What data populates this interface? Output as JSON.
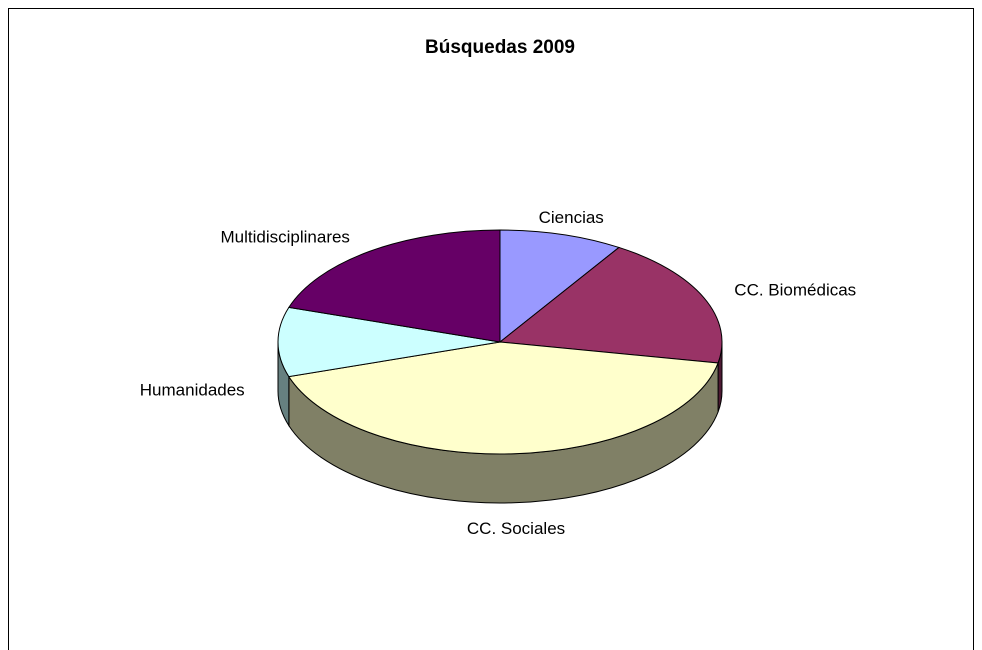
{
  "chart_data": {
    "type": "pie3d",
    "title": "Búsquedas 2009",
    "categories": [
      "Ciencias",
      "CC. Biomédicas",
      "CC. Sociales",
      "Humanidades",
      "Multidisciplinares"
    ],
    "values": [
      9,
      19,
      42,
      10,
      20
    ],
    "colors": [
      "#9999ff",
      "#993366",
      "#ffffcc",
      "#ccffff",
      "#660066"
    ]
  }
}
